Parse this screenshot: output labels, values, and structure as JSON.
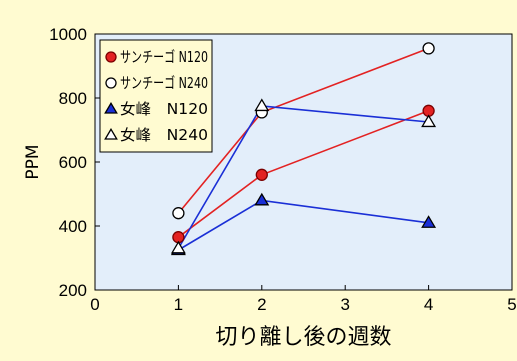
{
  "chart_data": {
    "type": "line",
    "xlabel": "切り離し後の週数",
    "ylabel": "PPM",
    "xlim": [
      0,
      5
    ],
    "ylim": [
      200,
      1000
    ],
    "xticks": [
      0,
      1,
      2,
      3,
      4,
      5
    ],
    "yticks": [
      200,
      400,
      600,
      800,
      1000
    ],
    "grid": false,
    "legend_position": "top-left",
    "plot_background": "#e3eefa",
    "series": [
      {
        "name": "サンチーゴ N120",
        "x": [
          1,
          2,
          4
        ],
        "y": [
          365,
          560,
          760
        ],
        "line_color": "#e32222",
        "marker": "circle",
        "marker_fill": "#e32222"
      },
      {
        "name": "サンチーゴ N240",
        "x": [
          1,
          2,
          4
        ],
        "y": [
          440,
          755,
          955
        ],
        "line_color": "#e32222",
        "marker": "circle",
        "marker_fill": "#ffffff"
      },
      {
        "name": "女峰　N120",
        "x": [
          1,
          2,
          4
        ],
        "y": [
          325,
          480,
          410
        ],
        "line_color": "#1a2fd6",
        "marker": "triangle",
        "marker_fill": "#1a2fd6"
      },
      {
        "name": "女峰　N240",
        "x": [
          1,
          2,
          4
        ],
        "y": [
          330,
          775,
          725
        ],
        "line_color": "#1a2fd6",
        "marker": "triangle",
        "marker_fill": "#ffffff"
      }
    ]
  }
}
